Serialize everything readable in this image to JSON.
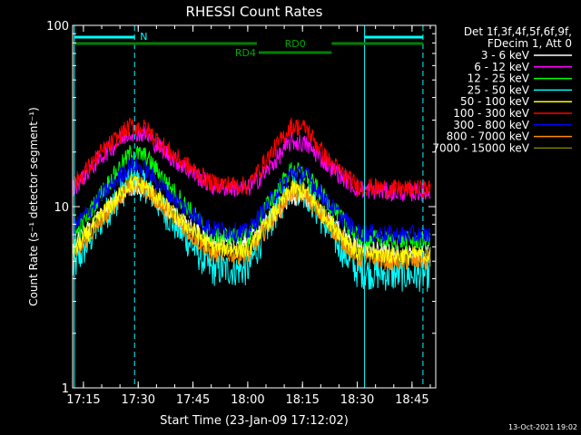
{
  "chart_data": {
    "type": "line",
    "title": "RHESSI Count Rates",
    "xlabel": "Start Time (23-Jan-09 17:12:02)",
    "ylabel": "Count Rate (s⁻¹ detector segment⁻¹)",
    "y_scale": "log",
    "ylim": [
      1,
      100
    ],
    "xlim": [
      "17:12:02",
      "18:51:30"
    ],
    "x_ticks": [
      "17:15",
      "17:30",
      "17:45",
      "18:00",
      "18:15",
      "18:30",
      "18:45"
    ],
    "y_ticks": [
      "1",
      "10",
      "100"
    ],
    "grid": false,
    "legend_placement": "right",
    "legend_header": [
      "Det 1f,3f,4f,5f,6f,9f,",
      "FDecim 1, Att 0"
    ],
    "x": [
      "17:12",
      "17:20",
      "17:28",
      "17:32",
      "17:40",
      "17:50",
      "18:00",
      "18:05",
      "18:12",
      "18:16",
      "18:22",
      "18:30",
      "18:40",
      "18:50"
    ],
    "series": [
      {
        "name": "3 - 6 keV",
        "color": "#ffffff",
        "values": [
          6,
          9,
          13,
          12.5,
          9,
          6.5,
          6.5,
          8,
          11.5,
          11,
          8.5,
          6,
          5.5,
          5.5
        ]
      },
      {
        "name": "6 - 12 keV",
        "color": "#ff00ff",
        "values": [
          12.5,
          19,
          26,
          25,
          18,
          13,
          12.5,
          15.5,
          23,
          22,
          17,
          12.5,
          12,
          12
        ]
      },
      {
        "name": "12 - 25 keV",
        "color": "#00ff00",
        "values": [
          6.5,
          12,
          20,
          19,
          12,
          7,
          6.8,
          10,
          16,
          15,
          10.5,
          6.8,
          6.5,
          6.5
        ]
      },
      {
        "name": "25 - 50 keV",
        "color": "#00ffff",
        "values": [
          4.5,
          8.5,
          14,
          13,
          8,
          4.5,
          4.5,
          7.5,
          13,
          12,
          7.5,
          4.4,
          4.2,
          4.2
        ]
      },
      {
        "name": "50 - 100 keV",
        "color": "#ffff00",
        "values": [
          5.5,
          9,
          13.5,
          13,
          9,
          6,
          5.8,
          8,
          12.5,
          12,
          8.5,
          5.6,
          5.4,
          5.4
        ]
      },
      {
        "name": "100 - 300 keV",
        "color": "#ff0000",
        "values": [
          13,
          20,
          28,
          27,
          19,
          13.5,
          13,
          18,
          28,
          27,
          18,
          13,
          12.5,
          12.5
        ]
      },
      {
        "name": "300 - 800 keV",
        "color": "#0000ff",
        "values": [
          7.5,
          11.5,
          17,
          16,
          11,
          7.5,
          7.2,
          10,
          15.5,
          15,
          10.5,
          7.2,
          7,
          7
        ]
      },
      {
        "name": "800 - 7000 keV",
        "color": "#ff8c00",
        "values": [
          5.2,
          8.5,
          13,
          12.5,
          8.5,
          5.5,
          5.4,
          7.5,
          12,
          11.5,
          8,
          5.2,
          5,
          5
        ]
      },
      {
        "name": "7000 - 15000 keV",
        "color": "#808000",
        "values": [
          5.5,
          8.8,
          13.5,
          13,
          8.8,
          5.8,
          5.6,
          7.8,
          12.5,
          12,
          8.2,
          5.4,
          5.2,
          5.2
        ]
      }
    ],
    "annotations": {
      "n_label": "N",
      "rd0_label": "RD0",
      "rd4_label": "RD4",
      "dashed_times": [
        "17:29",
        "18:48"
      ],
      "solid_times": [
        "17:12:30",
        "18:32"
      ]
    },
    "footer_timestamp": "13-Oct-2021 19:02"
  }
}
